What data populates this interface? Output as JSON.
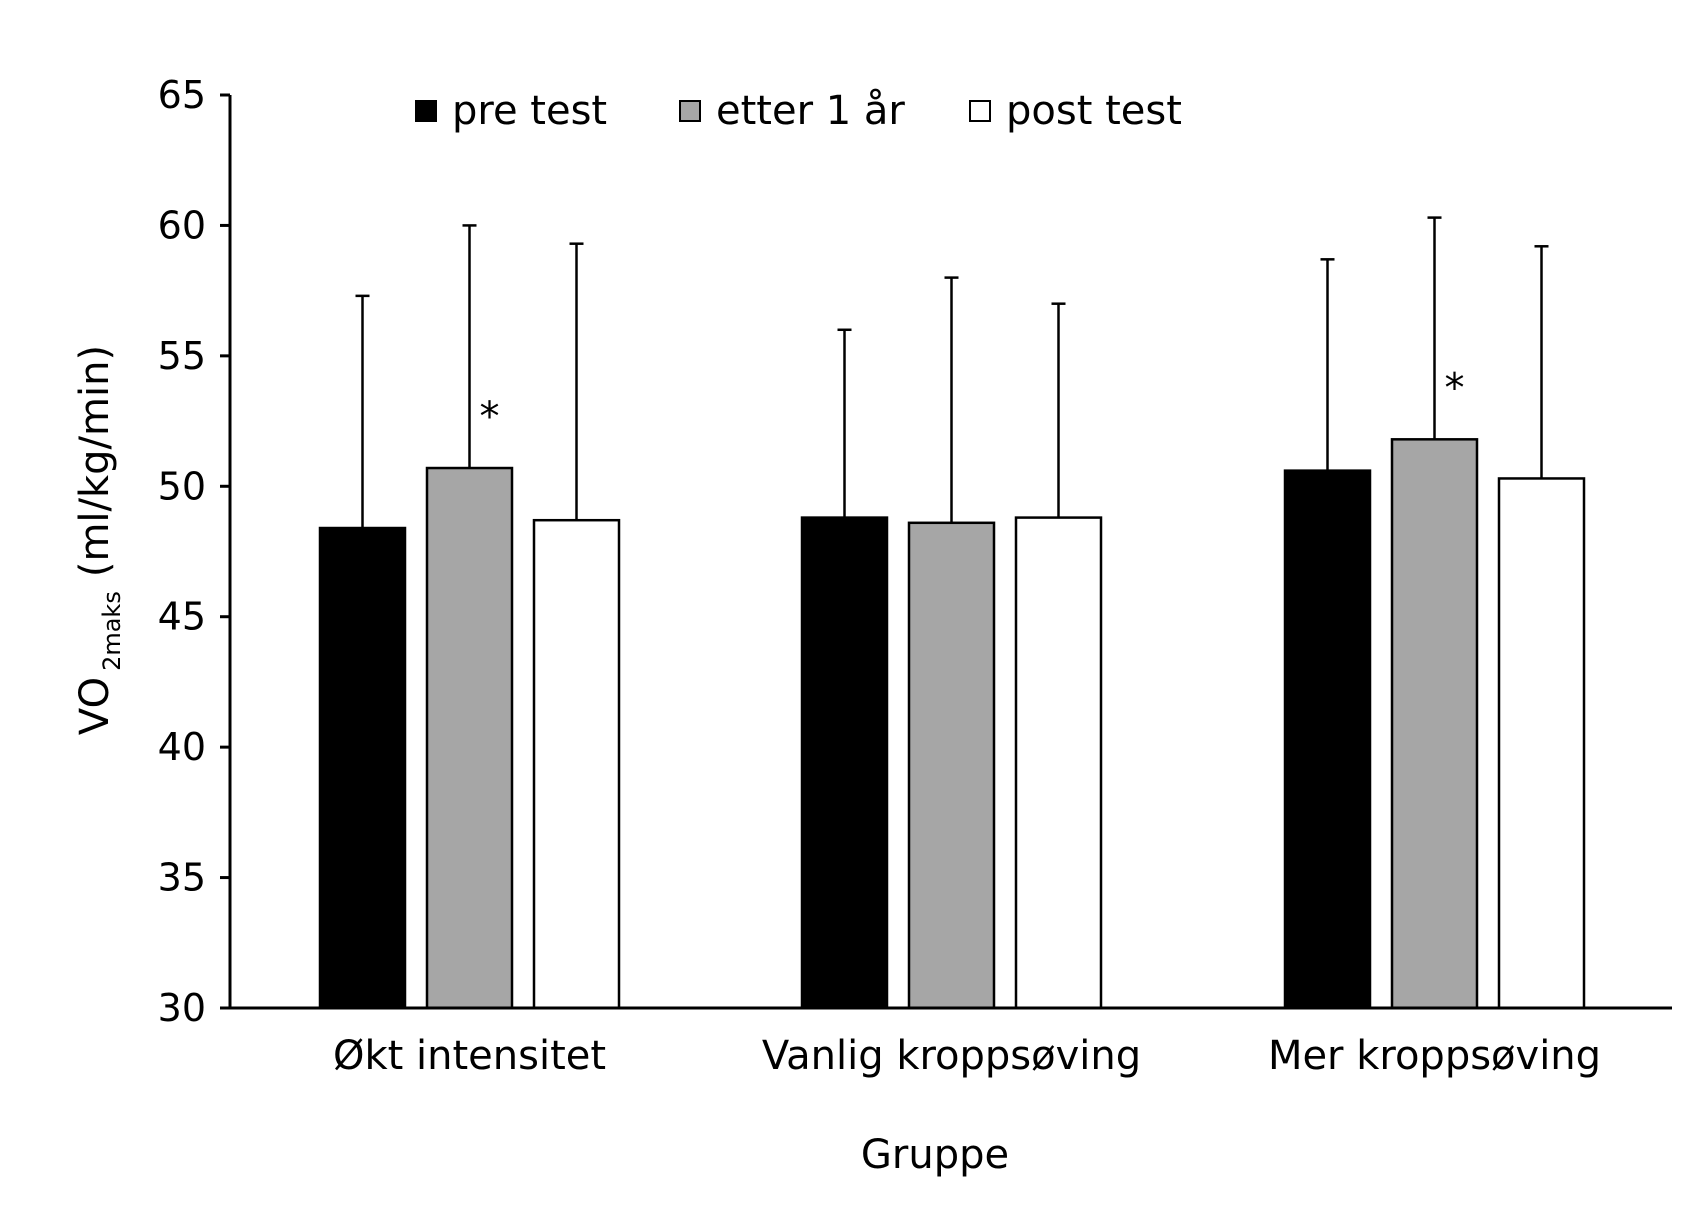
{
  "chart_data": {
    "type": "bar",
    "categories": [
      "Økt intensitet",
      "Vanlig kroppsøving",
      "Mer kroppsøving"
    ],
    "series": [
      {
        "name": "pre test",
        "color": "#000000",
        "values": [
          48.4,
          48.8,
          50.6
        ],
        "errors": [
          8.9,
          7.2,
          8.1
        ]
      },
      {
        "name": "etter 1 år",
        "color": "#a6a6a6",
        "values": [
          50.7,
          48.6,
          51.8
        ],
        "errors": [
          9.3,
          9.4,
          8.5
        ]
      },
      {
        "name": "post test",
        "color": "#ffffff",
        "values": [
          48.7,
          48.8,
          50.3
        ],
        "errors": [
          10.6,
          8.2,
          8.9
        ]
      }
    ],
    "annotations": [
      {
        "category": 0,
        "series": 1,
        "text": "*"
      },
      {
        "category": 2,
        "series": 1,
        "text": "*"
      }
    ],
    "xlabel": "Gruppe",
    "ylabel_main": "VO",
    "ylabel_sub": "2maks",
    "ylabel_unit": "(ml/kg/min)",
    "ylim": [
      30,
      65
    ],
    "yticks": [
      30,
      35,
      40,
      45,
      50,
      55,
      60,
      65
    ],
    "grid": false,
    "legend_position": "top"
  }
}
